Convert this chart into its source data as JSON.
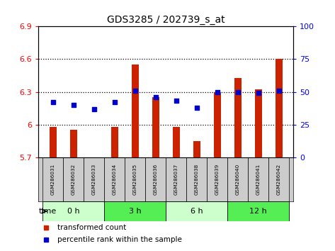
{
  "title": "GDS3285 / 202739_s_at",
  "samples": [
    "GSM286031",
    "GSM286032",
    "GSM286033",
    "GSM286034",
    "GSM286035",
    "GSM286036",
    "GSM286037",
    "GSM286038",
    "GSM286039",
    "GSM286040",
    "GSM286041",
    "GSM286042"
  ],
  "bar_values": [
    5.98,
    5.95,
    5.7,
    5.98,
    6.55,
    6.25,
    5.98,
    5.85,
    6.3,
    6.43,
    6.32,
    6.6
  ],
  "dot_values": [
    42,
    40,
    37,
    42,
    51,
    46,
    43,
    38,
    50,
    50,
    49,
    51
  ],
  "bar_bottom": 5.7,
  "ylim_left": [
    5.7,
    6.9
  ],
  "ylim_right": [
    0,
    100
  ],
  "yticks_left": [
    5.7,
    6.0,
    6.3,
    6.6,
    6.9
  ],
  "yticks_right": [
    0,
    25,
    50,
    75,
    100
  ],
  "ytick_labels_left": [
    "5.7",
    "6",
    "6.3",
    "6.6",
    "6.9"
  ],
  "ytick_labels_right": [
    "0",
    "25",
    "50",
    "75",
    "100"
  ],
  "hgrid_lines": [
    6.0,
    6.3,
    6.6
  ],
  "time_groups": [
    {
      "label": "0 h",
      "start": 0,
      "end": 3,
      "color": "#ccffcc"
    },
    {
      "label": "3 h",
      "start": 3,
      "end": 6,
      "color": "#55ee55"
    },
    {
      "label": "6 h",
      "start": 6,
      "end": 9,
      "color": "#ccffcc"
    },
    {
      "label": "12 h",
      "start": 9,
      "end": 12,
      "color": "#55ee55"
    }
  ],
  "bar_color": "#cc2200",
  "dot_color": "#0000cc",
  "background_color": "#ffffff",
  "sample_label_bg": "#cccccc",
  "time_label": "time",
  "legend_bar": "transformed count",
  "legend_dot": "percentile rank within the sample",
  "bar_width": 0.35
}
